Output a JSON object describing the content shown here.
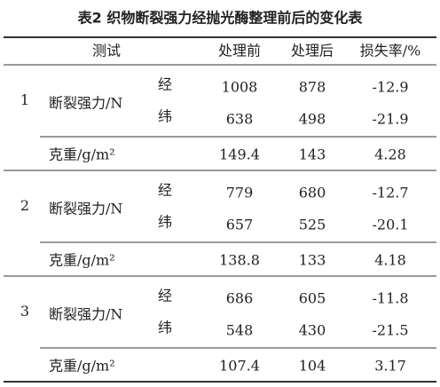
{
  "title": "表2 织物断裂强力经抛光酶整理前后的变化表",
  "table": {
    "header": [
      "测试",
      "处理前",
      "处理后",
      "损失率/%"
    ],
    "groups": [
      {
        "id": "1",
        "strength_label": "断裂强力/N",
        "rows": [
          {
            "dir": "经",
            "values": [
              "1008",
              "878",
              "-12.9"
            ]
          },
          {
            "dir": "纬",
            "values": [
              "638",
              "498",
              "-21.9"
            ]
          }
        ],
        "weight": {
          "label": "克重/g/m²",
          "values": [
            "149.4",
            "143",
            "4.28"
          ]
        }
      },
      {
        "id": "2",
        "strength_label": "断裂强力/N",
        "rows": [
          {
            "dir": "经",
            "values": [
              "779",
              "680",
              "-12.7"
            ]
          },
          {
            "dir": "纬",
            "values": [
              "657",
              "525",
              "-20.1"
            ]
          }
        ],
        "weight": {
          "label": "克重/g/m²",
          "values": [
            "138.8",
            "133",
            "4.18"
          ]
        }
      },
      {
        "id": "3",
        "strength_label": "断裂强力/N",
        "rows": [
          {
            "dir": "经",
            "values": [
              "686",
              "605",
              "-11.8"
            ]
          },
          {
            "dir": "纬",
            "values": [
              "548",
              "430",
              "-21.5"
            ]
          }
        ],
        "weight": {
          "label": "克重/g/m²",
          "values": [
            "107.4",
            "104",
            "3.17"
          ]
        }
      }
    ]
  }
}
